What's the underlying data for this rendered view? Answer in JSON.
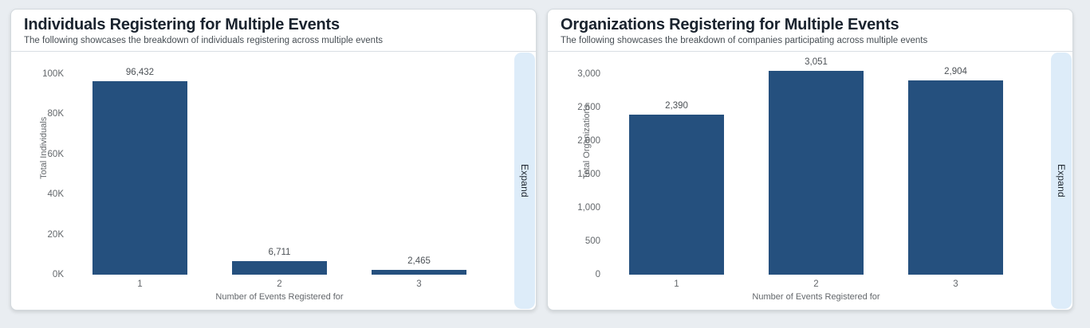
{
  "colors": {
    "page_background": "#e9edf1",
    "card_background": "#ffffff",
    "card_border": "#d4dade",
    "bar": "#25507e",
    "expand_background": "#ddecf9",
    "axis_text": "#63676b",
    "title_text": "#1a232e",
    "subtitle_text": "#474e54"
  },
  "panels": [
    {
      "title": "Individuals Registering for Multiple Events",
      "subtitle": "The following showcases the breakdown of individuals registering across multiple events",
      "expand_label": "Expand"
    },
    {
      "title": "Organizations Registering for Multiple Events",
      "subtitle": "The following showcases the breakdown of companies participating across multiple events",
      "expand_label": "Expand"
    }
  ],
  "chart_data": [
    {
      "type": "bar",
      "title": "Individuals Registering for Multiple Events",
      "categories": [
        "1",
        "2",
        "3"
      ],
      "values": [
        96432,
        6711,
        2465
      ],
      "value_labels": [
        "96,432",
        "6,711",
        "2,465"
      ],
      "xlabel": "Number of Events Registered for",
      "ylabel": "Total Individuals",
      "ylim": [
        0,
        100000
      ],
      "ytick_values": [
        0,
        20000,
        40000,
        60000,
        80000,
        100000
      ],
      "ytick_labels": [
        "0K",
        "20K",
        "40K",
        "60K",
        "80K",
        "100K"
      ],
      "grid": false,
      "legend": "none",
      "bar_color": "#25507e"
    },
    {
      "type": "bar",
      "title": "Organizations Registering for Multiple Events",
      "categories": [
        "1",
        "2",
        "3"
      ],
      "values": [
        2390,
        3051,
        2904
      ],
      "value_labels": [
        "2,390",
        "3,051",
        "2,904"
      ],
      "xlabel": "Number of Events Registered for",
      "ylabel": "Total Organizations",
      "ylim": [
        0,
        3000
      ],
      "ytick_values": [
        0,
        500,
        1000,
        1500,
        2000,
        2500,
        3000
      ],
      "ytick_labels": [
        "0",
        "500",
        "1,000",
        "1,500",
        "2,000",
        "2,500",
        "3,000"
      ],
      "grid": false,
      "legend": "none",
      "bar_color": "#25507e"
    }
  ]
}
